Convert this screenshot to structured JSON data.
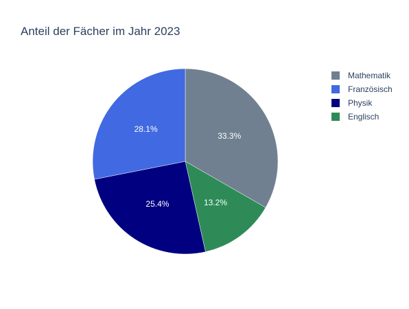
{
  "chart_data": {
    "type": "pie",
    "title": "Anteil der Fächer im Jahr 2023",
    "labels": [
      "Mathematik",
      "Französisch",
      "Physik",
      "Englisch"
    ],
    "values": [
      33.3,
      28.1,
      25.4,
      13.2
    ],
    "value_labels": [
      "33.3%",
      "28.1%",
      "25.4%",
      "13.2%"
    ],
    "colors": [
      "#708090",
      "#4169e1",
      "#000080",
      "#2e8b57"
    ],
    "slice_order": [
      0,
      3,
      2,
      1
    ],
    "start": "top",
    "direction": "clockwise",
    "legend_position": "top-right"
  }
}
